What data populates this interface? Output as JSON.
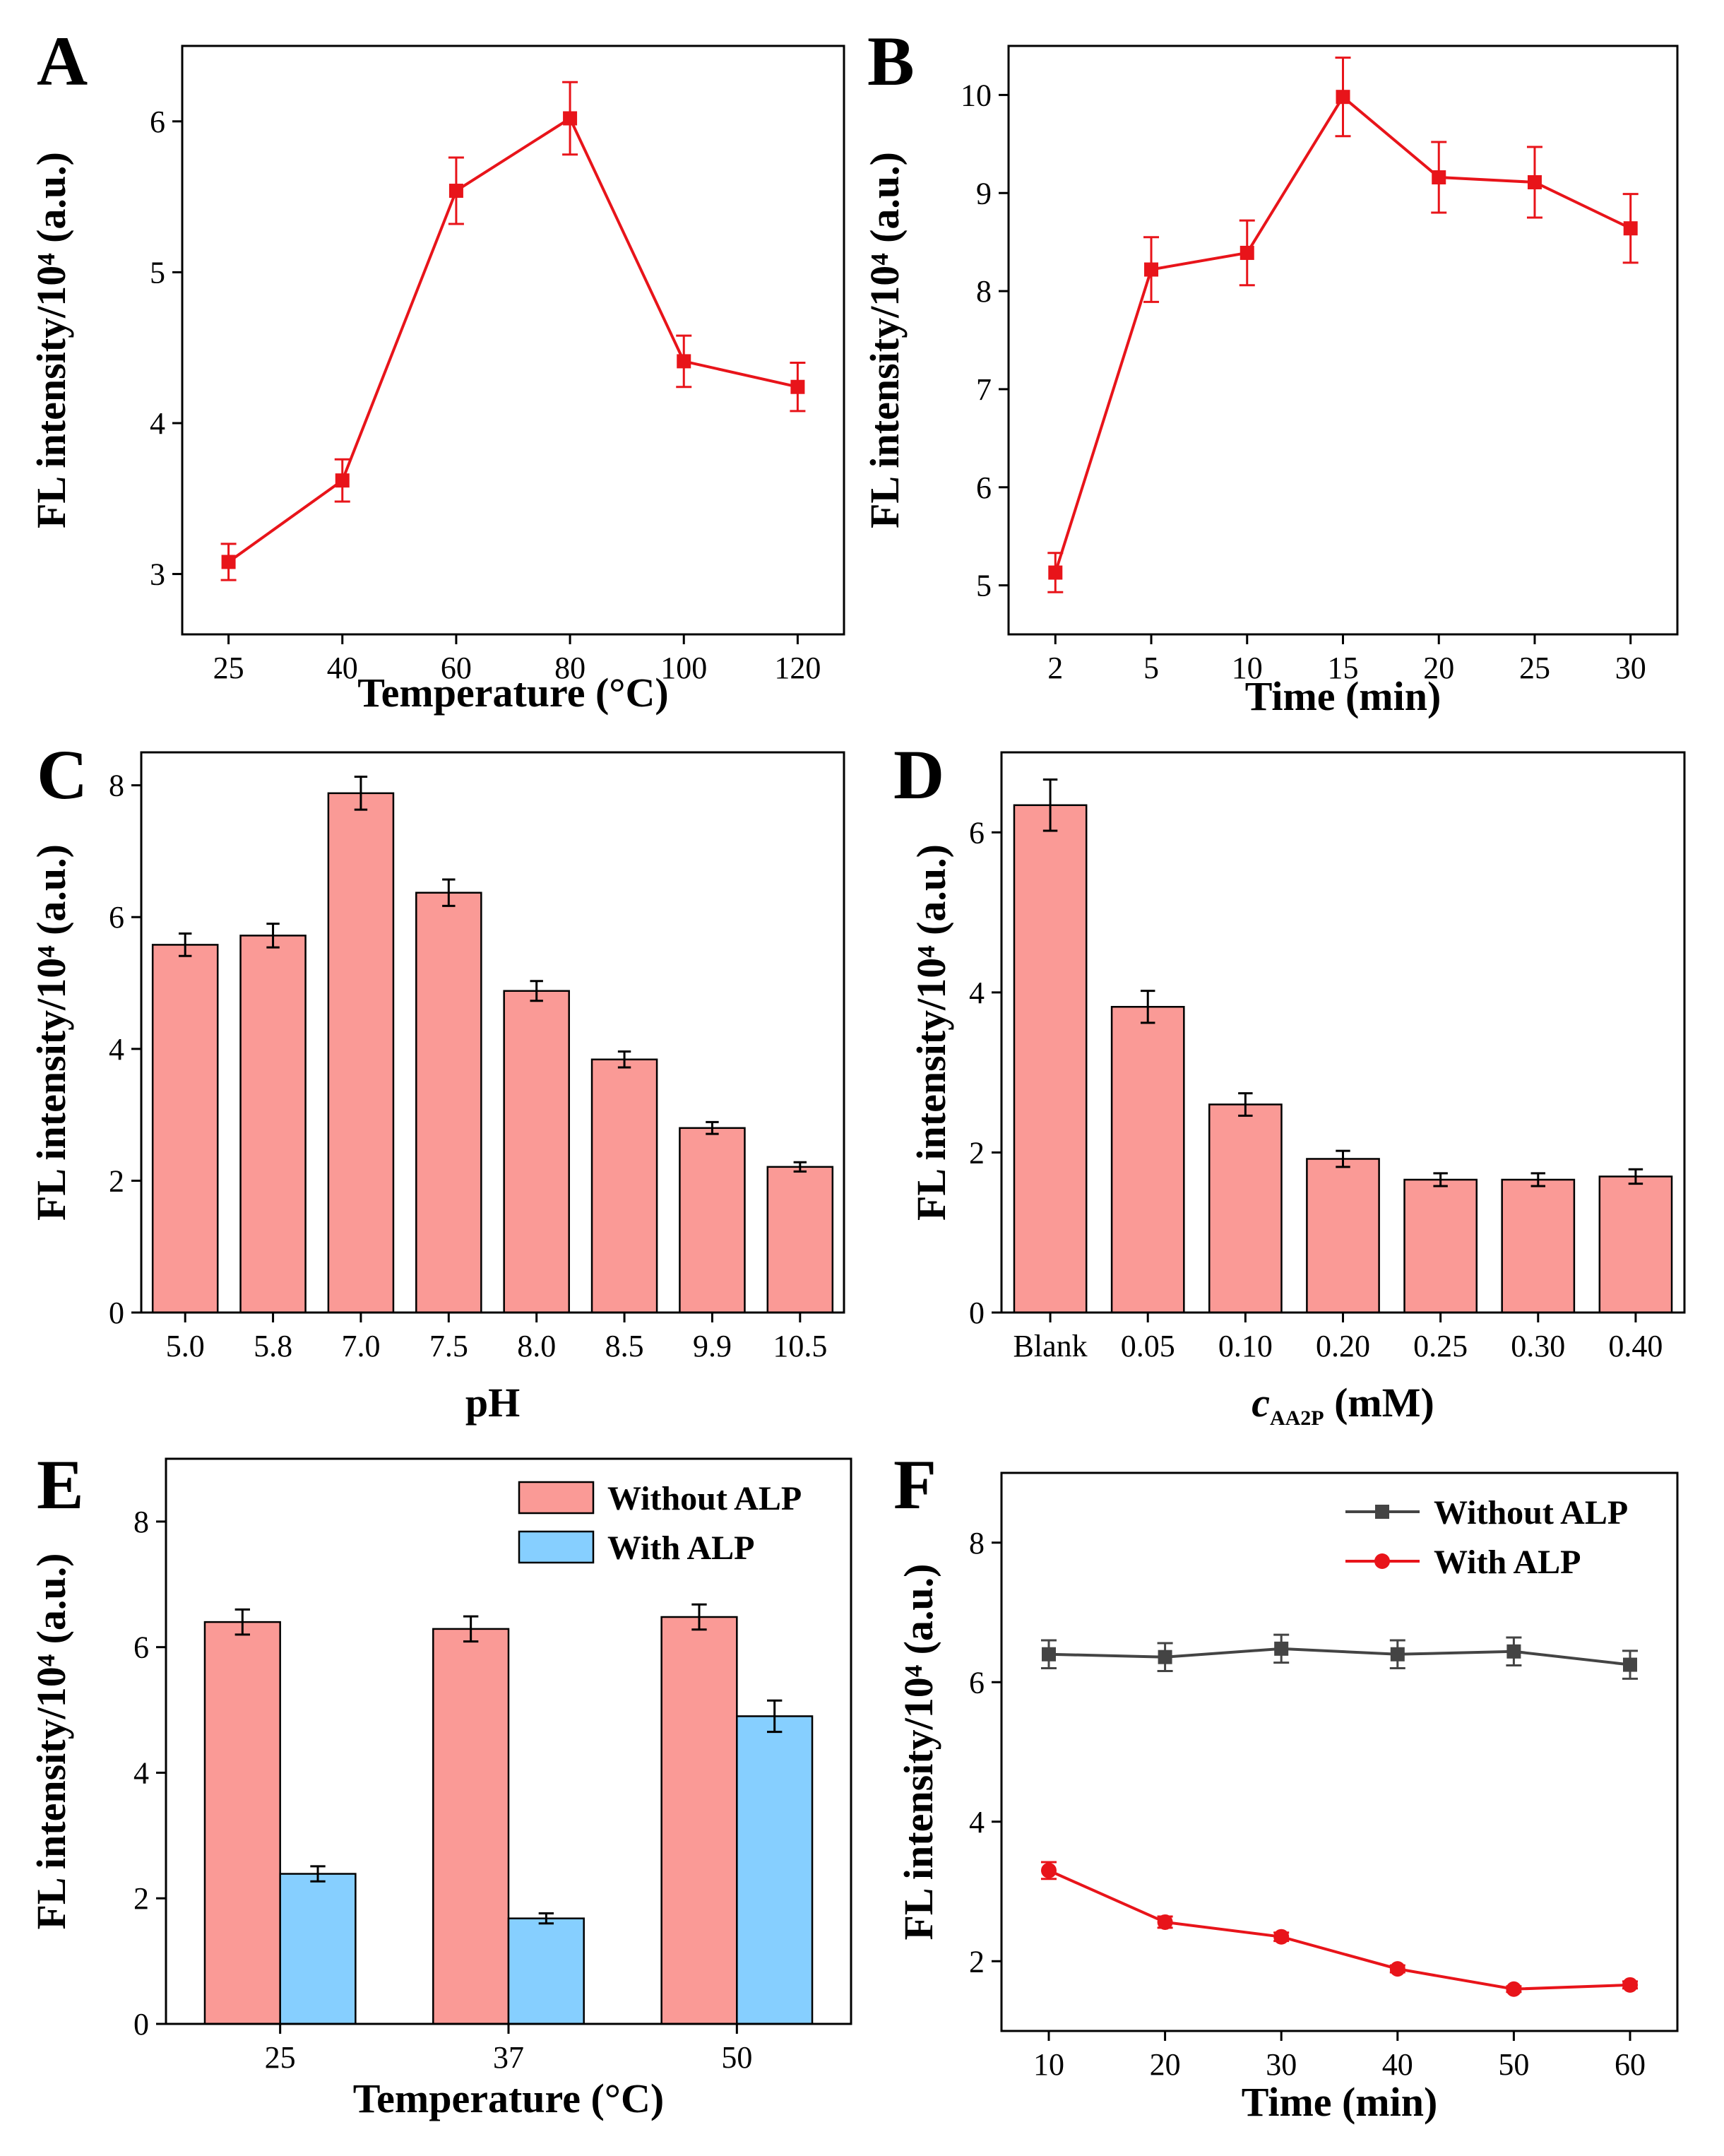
{
  "figure": {
    "colors": {
      "red_line": "#e8141a",
      "bar_red": "#fa9a96",
      "bar_blue": "#86cfff",
      "gray_line": "#444444",
      "axis": "#000000"
    }
  },
  "chart_data": [
    {
      "panel": "A",
      "type": "line",
      "x_categories": [
        "25",
        "40",
        "60",
        "80",
        "100",
        "120"
      ],
      "series": [
        {
          "name": "FL intensity",
          "values": [
            3.08,
            3.62,
            5.54,
            6.02,
            4.41,
            4.24
          ],
          "errors": [
            0.12,
            0.14,
            0.22,
            0.24,
            0.17,
            0.16
          ]
        }
      ],
      "xlabel": "Temperature (°C)",
      "ylabel": "FL intensity/10⁴ (a.u.)",
      "ylim": [
        2.6,
        6.5
      ],
      "yticks": [
        "3",
        "4",
        "5",
        "6"
      ],
      "grid": false
    },
    {
      "panel": "B",
      "type": "line",
      "x_categories": [
        "2",
        "5",
        "10",
        "15",
        "20",
        "25",
        "30"
      ],
      "series": [
        {
          "name": "FL intensity",
          "values": [
            5.13,
            8.22,
            8.39,
            9.98,
            9.16,
            9.11,
            8.64
          ],
          "errors": [
            0.2,
            0.33,
            0.33,
            0.4,
            0.36,
            0.36,
            0.35
          ]
        }
      ],
      "xlabel": "Time (min)",
      "ylabel": "FL intensity/10⁴ (a.u.)",
      "ylim": [
        4.5,
        10.5
      ],
      "yticks": [
        "5",
        "6",
        "7",
        "8",
        "9",
        "10"
      ],
      "grid": false
    },
    {
      "panel": "C",
      "type": "bar",
      "categories": [
        "5.0",
        "5.8",
        "7.0",
        "7.5",
        "8.0",
        "8.5",
        "9.9",
        "10.5"
      ],
      "series": [
        {
          "name": "FL intensity",
          "values": [
            5.58,
            5.72,
            7.88,
            6.37,
            4.88,
            3.84,
            2.8,
            2.21
          ],
          "errors": [
            0.17,
            0.18,
            0.25,
            0.2,
            0.15,
            0.12,
            0.09,
            0.07
          ]
        }
      ],
      "xlabel": "pH",
      "ylabel": "FL intensity/10⁴ (a.u.)",
      "ylim": [
        0,
        8.5
      ],
      "yticks": [
        "0",
        "2",
        "4",
        "6",
        "8"
      ],
      "grid": false
    },
    {
      "panel": "D",
      "type": "bar",
      "categories": [
        "Blank",
        "0.05",
        "0.10",
        "0.20",
        "0.25",
        "0.30",
        "0.40"
      ],
      "series": [
        {
          "name": "FL intensity",
          "values": [
            6.34,
            3.82,
            2.6,
            1.92,
            1.66,
            1.66,
            1.7
          ],
          "errors": [
            0.32,
            0.2,
            0.14,
            0.1,
            0.08,
            0.08,
            0.09
          ]
        }
      ],
      "xlabel_main": "c",
      "xlabel_sub": "AA2P",
      "xlabel_unit": " (mM)",
      "ylabel": "FL intensity/10⁴ (a.u.)",
      "ylim": [
        0,
        7.0
      ],
      "yticks": [
        "0",
        "2",
        "4",
        "6"
      ],
      "grid": false
    },
    {
      "panel": "E",
      "type": "bar",
      "categories": [
        "25",
        "37",
        "50"
      ],
      "series": [
        {
          "name": "Without ALP",
          "values": [
            6.4,
            6.29,
            6.48
          ],
          "errors": [
            0.2,
            0.2,
            0.2
          ]
        },
        {
          "name": "With ALP",
          "values": [
            2.39,
            1.68,
            4.9
          ],
          "errors": [
            0.12,
            0.08,
            0.25
          ]
        }
      ],
      "xlabel": "Temperature (°C)",
      "ylabel": "FL intensity/10⁴ (a.u.)",
      "ylim": [
        0,
        9.0
      ],
      "yticks": [
        "0",
        "2",
        "4",
        "6",
        "8"
      ],
      "legend": "top-right",
      "grid": false
    },
    {
      "panel": "F",
      "type": "line",
      "x_categories": [
        "10",
        "20",
        "30",
        "40",
        "50",
        "60"
      ],
      "series": [
        {
          "name": "Without ALP",
          "values": [
            6.4,
            6.36,
            6.48,
            6.4,
            6.44,
            6.25
          ],
          "errors": [
            0.2,
            0.2,
            0.2,
            0.2,
            0.2,
            0.2
          ]
        },
        {
          "name": "With ALP",
          "values": [
            3.3,
            2.56,
            2.35,
            1.89,
            1.6,
            1.66
          ],
          "errors": [
            0.12,
            0.08,
            0.06,
            0.05,
            0.04,
            0.05
          ]
        }
      ],
      "xlabel": "Time (min)",
      "ylabel": "FL intensity/10⁴ (a.u.)",
      "ylim": [
        1.0,
        9.0
      ],
      "yticks": [
        "2",
        "4",
        "6",
        "8"
      ],
      "legend": "top-right",
      "grid": false
    }
  ]
}
